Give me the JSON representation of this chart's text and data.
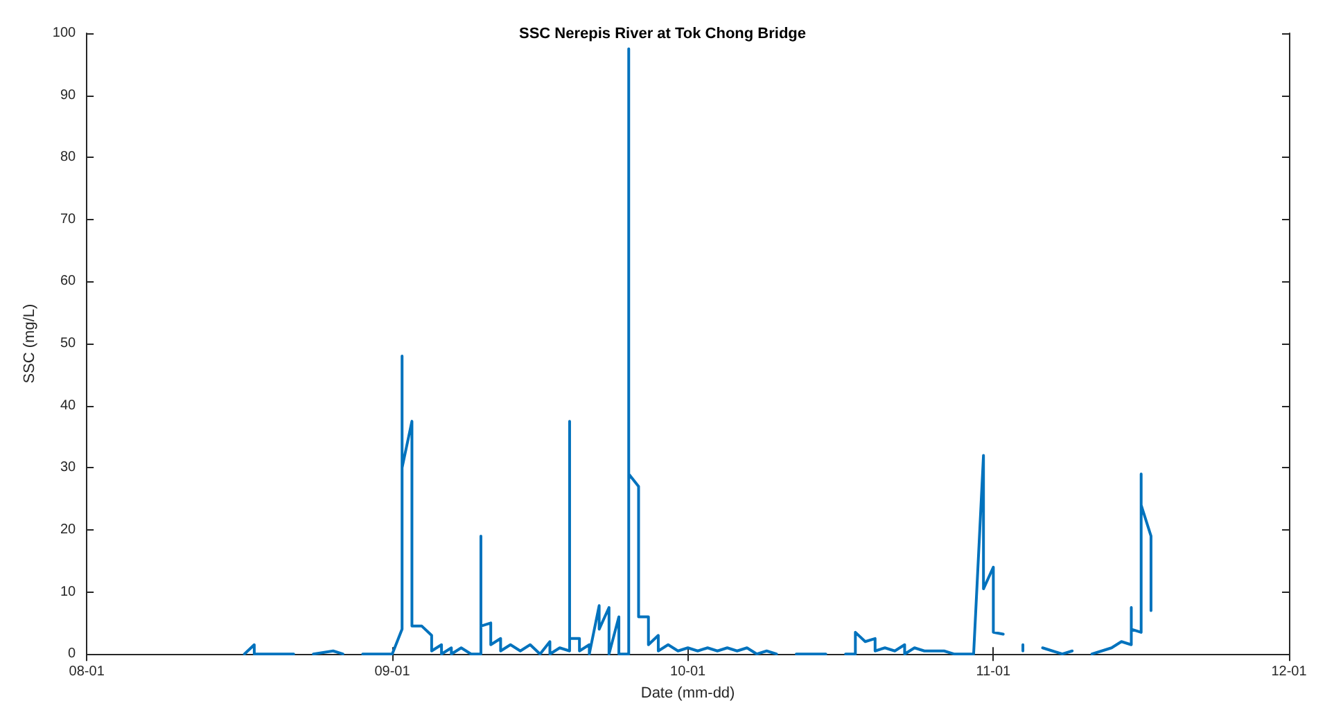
{
  "chart_data": {
    "type": "line",
    "title": "SSC Nerepis River at Tok Chong Bridge",
    "xlabel": "Date (mm-dd)",
    "ylabel": "SSC (mg/L)",
    "xlim": [
      "--08-01",
      "--12-01"
    ],
    "xticks": [
      {
        "value": "--08-01",
        "label": "08-01"
      },
      {
        "value": "--09-01",
        "label": "09-01"
      },
      {
        "value": "--10-01",
        "label": "10-01"
      },
      {
        "value": "--11-01",
        "label": "11-01"
      },
      {
        "value": "--12-01",
        "label": "12-01"
      }
    ],
    "ylim": [
      0,
      100
    ],
    "yticks": [
      0,
      10,
      20,
      30,
      40,
      50,
      60,
      70,
      80,
      90,
      100
    ],
    "grid": false,
    "marker": "none",
    "line_style": "solid",
    "series": [
      {
        "color": "#0072bd",
        "x": [
          "--08-17",
          "--08-18",
          "--08-18",
          "--08-22",
          "--08-23",
          "--08-24",
          "--08-26",
          "--08-27",
          "--08-28",
          "--08-29",
          "--09-01",
          "--09-02",
          "--09-02",
          "--09-02",
          "--09-03",
          "--09-03",
          "--09-04",
          "--09-05",
          "--09-05",
          "--09-06",
          "--09-06",
          "--09-07",
          "--09-07",
          "--09-08",
          "--09-09",
          "--09-10",
          "--09-10",
          "--09-10",
          "--09-11",
          "--09-11",
          "--09-12",
          "--09-12",
          "--09-13",
          "--09-14",
          "--09-15",
          "--09-16",
          "--09-17",
          "--09-17",
          "--09-18",
          "--09-19",
          "--09-19",
          "--09-19",
          "--09-20",
          "--09-20",
          "--09-21",
          "--09-21",
          "--09-22",
          "--09-22",
          "--09-23",
          "--09-23",
          "--09-24",
          "--09-24",
          "--09-25",
          "--09-25",
          "--09-25",
          "--09-26",
          "--09-26",
          "--09-27",
          "--09-27",
          "--09-28",
          "--09-28",
          "--09-29",
          "--09-30",
          "--10-01",
          "--10-02",
          "--10-03",
          "--10-04",
          "--10-05",
          "--10-06",
          "--10-07",
          "--10-08",
          "--10-09",
          "--10-10",
          "--10-11",
          "--10-12",
          "--10-15",
          "--10-16",
          "--10-17",
          "--10-18",
          "--10-18",
          "--10-19",
          "--10-20",
          "--10-20",
          "--10-21",
          "--10-22",
          "--10-23",
          "--10-23",
          "--10-24",
          "--10-25",
          "--10-27",
          "--10-28",
          "--10-30",
          "--10-31",
          "--10-31",
          "--11-01",
          "--11-01",
          "--11-02",
          "--11-03",
          "--11-04",
          "--11-04",
          "--11-05",
          "--11-06",
          "--11-07",
          "--11-08",
          "--11-09",
          "--11-10",
          "--11-11",
          "--11-12",
          "--11-13",
          "--11-14",
          "--11-15",
          "--11-15",
          "--11-15",
          "--11-16",
          "--11-16",
          "--11-16",
          "--11-17",
          "--11-17"
        ],
        "values": [
          0,
          1.5,
          0,
          0,
          null,
          0,
          0.5,
          0,
          null,
          0,
          0,
          4,
          48,
          30,
          37.5,
          4.5,
          4.5,
          3,
          0.5,
          1.5,
          0,
          1,
          0,
          1,
          0,
          0,
          19,
          4.5,
          5,
          1.5,
          2.5,
          0.5,
          1.5,
          0.5,
          1.5,
          0,
          2,
          0,
          1,
          0.5,
          37.5,
          2.5,
          2.5,
          0.5,
          1.5,
          0,
          7.8,
          4,
          7.5,
          0,
          6,
          0,
          0,
          97.5,
          29,
          27,
          6,
          6,
          1.5,
          3,
          0.5,
          1.5,
          0.5,
          1,
          0.5,
          1,
          0.5,
          1,
          0.5,
          1,
          0,
          0.5,
          0,
          null,
          0,
          0,
          null,
          0,
          0,
          3.5,
          2,
          2.5,
          0.5,
          1,
          0.5,
          1.5,
          0,
          1,
          0.5,
          0.5,
          0,
          0,
          32,
          10.5,
          14,
          3.5,
          3.2,
          null,
          1.5,
          0.5,
          null,
          1,
          0.5,
          0,
          0.5,
          null,
          0,
          0.5,
          1,
          2,
          1.5,
          7.5,
          4,
          3.5,
          29,
          24,
          19,
          7
        ]
      }
    ]
  }
}
